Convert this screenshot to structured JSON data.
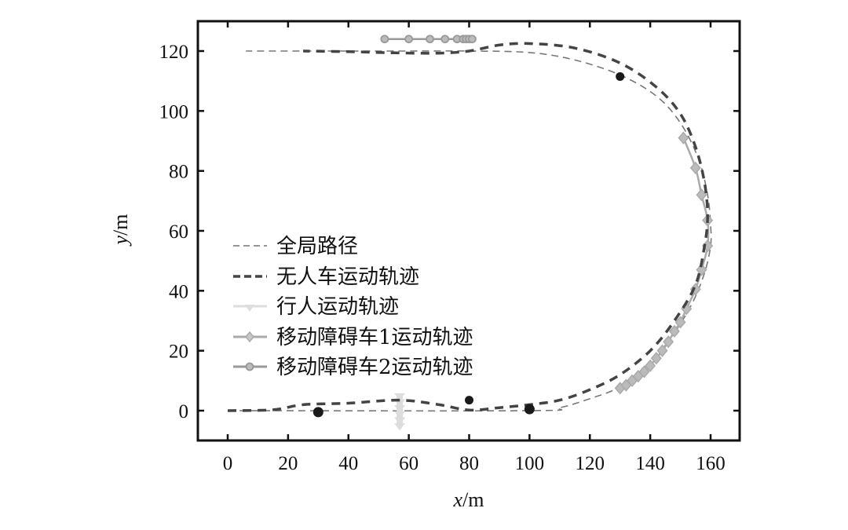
{
  "chart_data": {
    "type": "line",
    "title": "",
    "xlabel": "x/m",
    "ylabel": "y/m",
    "xlim": [
      -10,
      170
    ],
    "ylim": [
      -10,
      130
    ],
    "xticks": [
      0,
      20,
      40,
      60,
      80,
      100,
      120,
      140,
      160
    ],
    "yticks": [
      0,
      20,
      40,
      60,
      80,
      100,
      120
    ],
    "grid": false,
    "legend_position": "center-left",
    "legend": [
      "全局路径",
      "无人车运动轨迹",
      "行人运动轨迹",
      "移动障碍车1运动轨迹",
      "移动障碍车2运动轨迹"
    ],
    "series": [
      {
        "name": "全局路径",
        "style": "thin-dashed",
        "color": "#777777",
        "points": [
          [
            0,
            0
          ],
          [
            100,
            0
          ],
          [
            110,
            1
          ],
          [
            120,
            4
          ],
          [
            130,
            8
          ],
          [
            140,
            16
          ],
          [
            148,
            26
          ],
          [
            154,
            36
          ],
          [
            158,
            46
          ],
          [
            160,
            55
          ],
          [
            160,
            62
          ],
          [
            159,
            72
          ],
          [
            156,
            84
          ],
          [
            150,
            96
          ],
          [
            142,
            105
          ],
          [
            130,
            112
          ],
          [
            115,
            117
          ],
          [
            100,
            119.5
          ],
          [
            80,
            120
          ],
          [
            60,
            120
          ],
          [
            40,
            120
          ],
          [
            6,
            120
          ]
        ]
      },
      {
        "name": "无人车运动轨迹",
        "style": "thick-dashed",
        "color": "#444444",
        "points": [
          [
            0,
            0
          ],
          [
            15,
            0.3
          ],
          [
            25,
            2
          ],
          [
            40,
            2.5
          ],
          [
            57,
            3.5
          ],
          [
            70,
            2
          ],
          [
            80,
            0.2
          ],
          [
            90,
            1
          ],
          [
            100,
            2
          ],
          [
            110,
            3.5
          ],
          [
            120,
            7
          ],
          [
            130,
            12
          ],
          [
            140,
            20
          ],
          [
            148,
            30
          ],
          [
            155,
            42
          ],
          [
            158,
            55
          ],
          [
            159,
            65
          ],
          [
            158,
            76
          ],
          [
            155,
            88
          ],
          [
            150,
            99
          ],
          [
            142,
            108
          ],
          [
            130,
            116
          ],
          [
            115,
            121
          ],
          [
            100,
            122.5
          ],
          [
            90,
            122
          ],
          [
            80,
            120
          ],
          [
            70,
            119.3
          ],
          [
            55,
            119.4
          ],
          [
            40,
            119.8
          ],
          [
            25,
            120
          ]
        ]
      },
      {
        "name": "行人运动轨迹",
        "style": "solid-triangle-down-markers",
        "color": "#dddddd",
        "points": [
          [
            57,
            5
          ],
          [
            57,
            3
          ],
          [
            57,
            1
          ],
          [
            57,
            -1
          ],
          [
            57,
            -3
          ],
          [
            57,
            -5
          ]
        ]
      },
      {
        "name": "移动障碍车1运动轨迹",
        "style": "solid-diamond-markers",
        "color": "#aaaaaa",
        "points": [
          [
            130,
            7.5
          ],
          [
            132,
            8.5
          ],
          [
            134,
            10
          ],
          [
            136,
            11.5
          ],
          [
            138,
            13
          ],
          [
            140,
            15
          ],
          [
            142,
            17.5
          ],
          [
            144,
            20
          ],
          [
            146,
            23
          ],
          [
            148,
            26.5
          ],
          [
            150,
            29.5
          ],
          [
            152,
            34
          ],
          [
            155,
            40.5
          ],
          [
            157,
            47
          ],
          [
            159,
            55
          ],
          [
            159,
            63.5
          ],
          [
            157,
            72
          ],
          [
            155,
            81
          ],
          [
            151,
            91
          ]
        ]
      },
      {
        "name": "移动障碍车2运动轨迹",
        "style": "solid-circle-markers",
        "color": "#999999",
        "points": [
          [
            52,
            124
          ],
          [
            60,
            124
          ],
          [
            67,
            124
          ],
          [
            72,
            124
          ],
          [
            76,
            124
          ],
          [
            78,
            124
          ],
          [
            79,
            124
          ],
          [
            80,
            124
          ],
          [
            81,
            124
          ]
        ]
      }
    ],
    "static_obstacles": [
      [
        30,
        -0.5
      ],
      [
        80,
        3.5
      ],
      [
        100,
        0.5
      ],
      [
        130,
        111.5
      ]
    ]
  }
}
